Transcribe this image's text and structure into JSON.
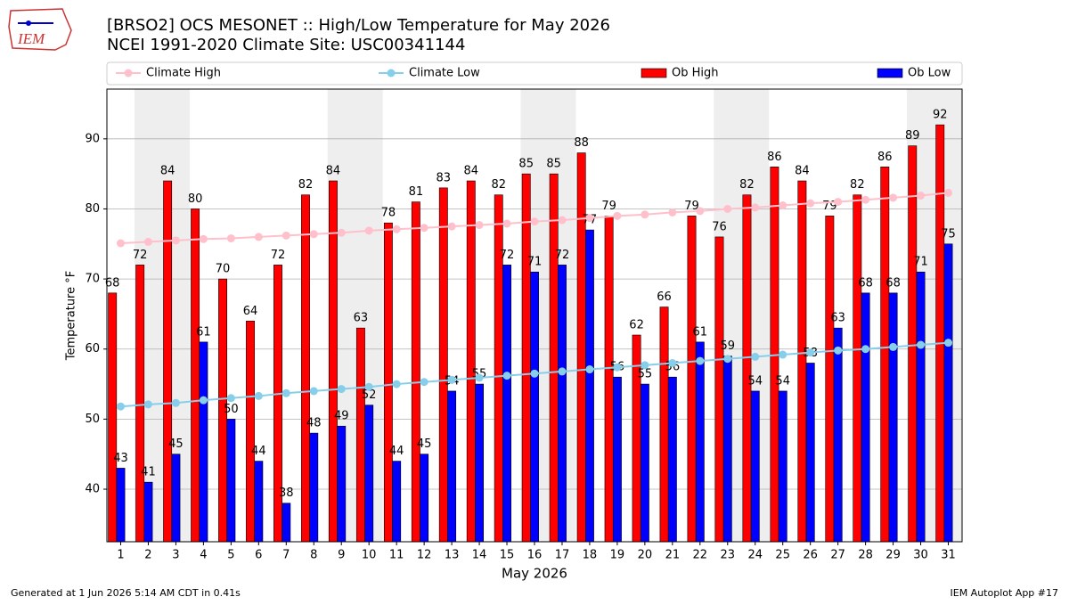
{
  "chart_data": {
    "type": "bar",
    "title": "[BRSO2] OCS MESONET :: High/Low Temperature for May 2026",
    "subtitle": "NCEI 1991-2020 Climate Site: USC00341144",
    "xlabel": "May 2026",
    "ylabel": "Temperature °F",
    "categories": [
      "1",
      "2",
      "3",
      "4",
      "5",
      "6",
      "7",
      "8",
      "9",
      "10",
      "11",
      "12",
      "13",
      "14",
      "15",
      "16",
      "17",
      "18",
      "19",
      "20",
      "21",
      "22",
      "23",
      "24",
      "25",
      "26",
      "27",
      "28",
      "29",
      "30",
      "31"
    ],
    "series": [
      {
        "name": "Climate High",
        "type": "line",
        "color": "#ffc0cb",
        "values": [
          75.1,
          75.3,
          75.5,
          75.7,
          75.8,
          76.0,
          76.2,
          76.4,
          76.6,
          76.9,
          77.1,
          77.3,
          77.5,
          77.7,
          77.9,
          78.2,
          78.4,
          78.7,
          79.0,
          79.2,
          79.5,
          79.7,
          80.0,
          80.2,
          80.5,
          80.8,
          81.0,
          81.3,
          81.6,
          81.9,
          82.3
        ]
      },
      {
        "name": "Climate Low",
        "type": "line",
        "color": "#87ceeb",
        "values": [
          51.8,
          52.1,
          52.3,
          52.7,
          53.0,
          53.3,
          53.7,
          54.0,
          54.3,
          54.6,
          55.0,
          55.3,
          55.6,
          55.9,
          56.2,
          56.5,
          56.8,
          57.1,
          57.4,
          57.7,
          58.0,
          58.3,
          58.6,
          58.9,
          59.2,
          59.5,
          59.8,
          60.0,
          60.3,
          60.6,
          60.9
        ]
      },
      {
        "name": "Ob High",
        "type": "bar",
        "color": "#ff0000",
        "values": [
          68,
          72,
          84,
          80,
          70,
          64,
          72,
          82,
          84,
          63,
          78,
          81,
          83,
          84,
          82,
          85,
          85,
          88,
          79,
          62,
          66,
          79,
          76,
          82,
          86,
          84,
          79,
          82,
          86,
          89,
          92
        ]
      },
      {
        "name": "Ob Low",
        "type": "bar",
        "color": "#0000ff",
        "values": [
          43,
          41,
          45,
          61,
          50,
          44,
          38,
          48,
          49,
          52,
          44,
          45,
          54,
          55,
          72,
          71,
          72,
          77,
          56,
          55,
          56,
          61,
          59,
          54,
          54,
          58,
          63,
          68,
          68,
          71,
          75
        ]
      }
    ],
    "ylim": [
      32.5,
      97.1
    ],
    "yticks": [
      40,
      50,
      60,
      70,
      80,
      90
    ],
    "grid": true,
    "legend": "top"
  },
  "logo": {
    "text": "IEM"
  },
  "footer": {
    "left": "Generated at 1 Jun 2026 5:14 AM CDT in 0.41s",
    "right": "IEM Autoplot App #17"
  }
}
